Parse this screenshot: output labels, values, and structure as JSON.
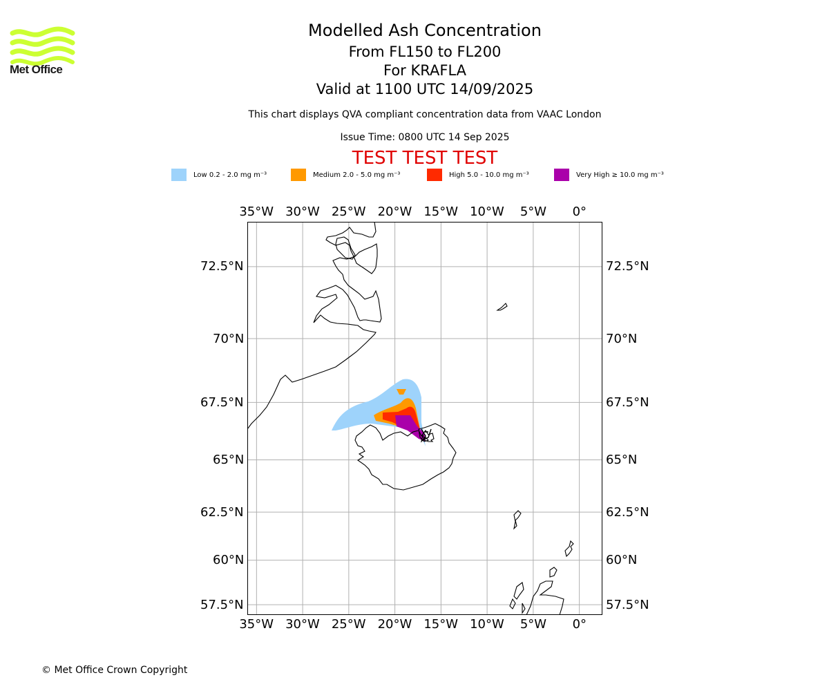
{
  "logo": {
    "text": "Met Office",
    "color": "#ccff33"
  },
  "header": {
    "title": "Modelled Ash Concentration",
    "levels": "From FL150 to FL200",
    "volcano": "For KRAFLA",
    "valid": "Valid at 1100 UTC 14/09/2025",
    "description": "This chart displays QVA compliant concentration data from VAAC London",
    "issue_time": "Issue Time: 0800 UTC 14 Sep 2025",
    "test_banner": "TEST TEST TEST",
    "test_color": "#e00000"
  },
  "legend": [
    {
      "label": "Low 0.2 - 2.0 mg m⁻³",
      "color": "#9ed3fb"
    },
    {
      "label": "Medium 2.0 - 5.0 mg m⁻³",
      "color": "#ff9900"
    },
    {
      "label": "High 5.0 - 10.0 mg m⁻³",
      "color": "#ff2a00"
    },
    {
      "label": "Very High ≥ 10.0 mg m⁻³",
      "color": "#aa00aa"
    }
  ],
  "map": {
    "lon_labels": [
      "35°W",
      "30°W",
      "25°W",
      "20°W",
      "15°W",
      "10°W",
      "5°W",
      "0°"
    ],
    "lon_values": [
      -35,
      -30,
      -25,
      -20,
      -15,
      -10,
      -5,
      0
    ],
    "lat_labels": [
      "72.5°N",
      "70°N",
      "67.5°N",
      "65°N",
      "62.5°N",
      "60°N",
      "57.5°N"
    ],
    "lat_values": [
      72.5,
      70,
      67.5,
      65,
      62.5,
      60,
      57.5
    ],
    "lon_range": [
      -36,
      2.5
    ],
    "lat_range": [
      56.9,
      73.9
    ],
    "gridlines": true
  },
  "footer": {
    "copyright": "© Met Office Crown Copyright"
  }
}
